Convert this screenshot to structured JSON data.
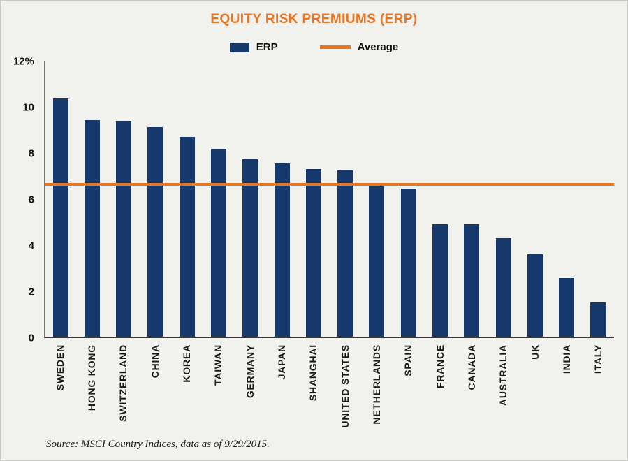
{
  "title": "EQUITY RISK PREMIUMS (ERP)",
  "legend": {
    "erp_label": "ERP",
    "average_label": "Average"
  },
  "source": "Source: MSCI Country Indices, data as of 9/29/2015.",
  "colors": {
    "bar": "#17386d",
    "accent": "#e87722",
    "title": "#ee7520",
    "background": "#f1f1ee"
  },
  "chart_data": {
    "type": "bar",
    "title": "EQUITY RISK PREMIUMS (ERP)",
    "categories": [
      "SWEDEN",
      "HONG KONG",
      "SWITZERLAND",
      "CHINA",
      "KOREA",
      "TAIWAN",
      "GERMANY",
      "JAPAN",
      "SHANGHAI",
      "UNITED STATES",
      "NETHERLANDS",
      "SPAIN",
      "FRANCE",
      "CANADA",
      "AUSTRALIA",
      "UK",
      "INDIA",
      "ITALY"
    ],
    "series": [
      {
        "name": "ERP",
        "type": "bar",
        "values": [
          10.4,
          9.45,
          9.4,
          9.15,
          8.7,
          8.2,
          7.75,
          7.55,
          7.3,
          7.25,
          6.55,
          6.45,
          4.9,
          4.9,
          4.3,
          3.6,
          2.55,
          1.5
        ]
      },
      {
        "name": "Average",
        "type": "line",
        "value": 6.65
      }
    ],
    "xlabel": "",
    "ylabel": "",
    "ylim": [
      0,
      12
    ],
    "yticks": [
      "12%",
      "10",
      "8",
      "6",
      "4",
      "2",
      "0"
    ],
    "ytick_values": [
      12,
      10,
      8,
      6,
      4,
      2,
      0
    ],
    "grid": false,
    "legend_position": "top"
  }
}
